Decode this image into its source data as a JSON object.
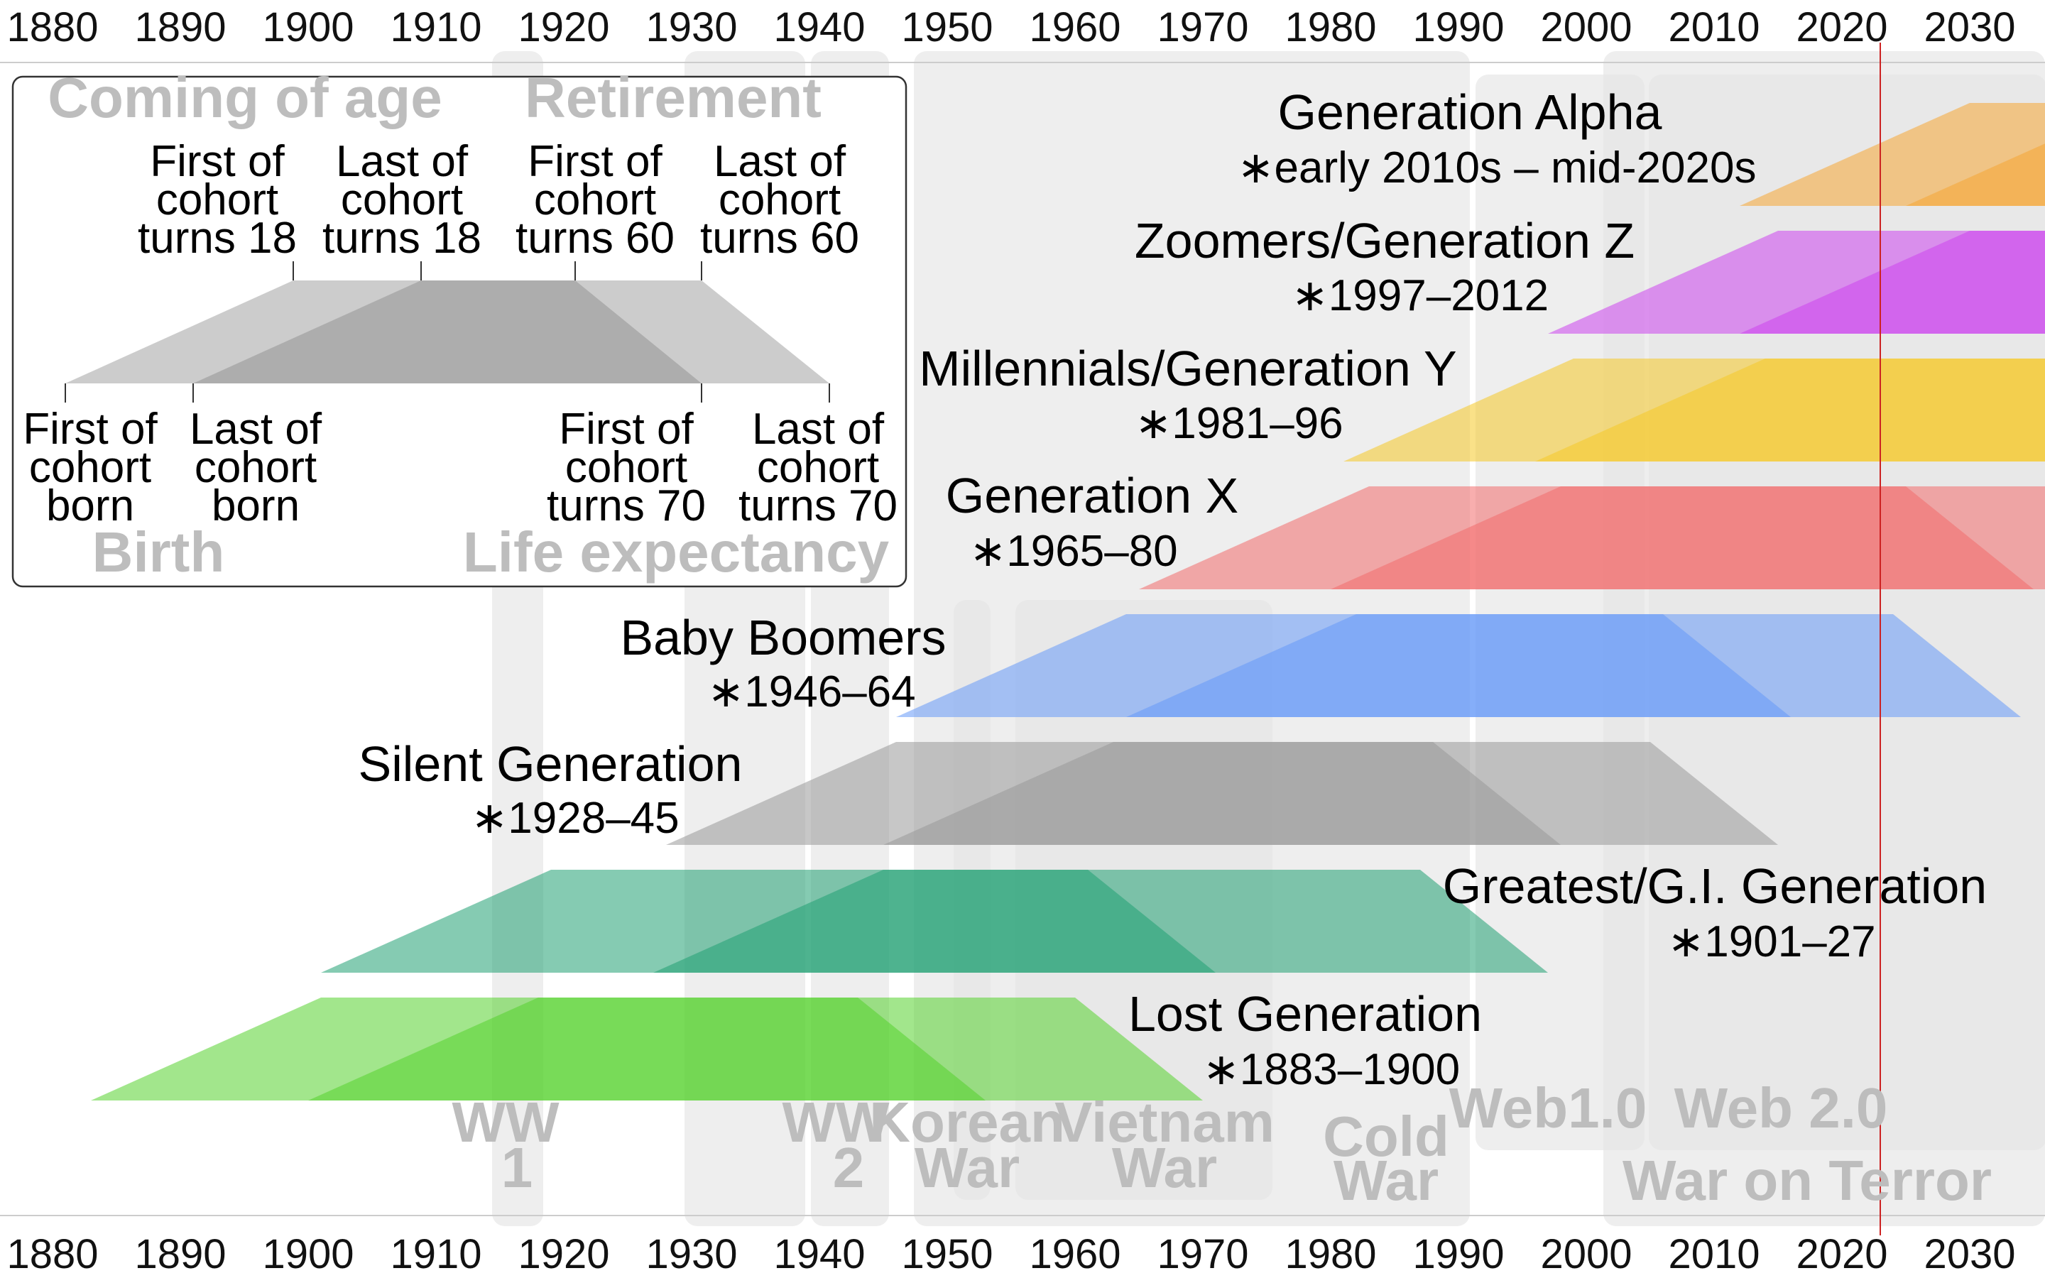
{
  "chart_data": {
    "type": "timeline",
    "x_axis": {
      "ticks": [
        "1880",
        "1890",
        "1900",
        "1910",
        "1920",
        "1930",
        "1940",
        "1950",
        "1960",
        "1970",
        "1980",
        "1990",
        "2000",
        "2010",
        "2020",
        "2030"
      ],
      "range": [
        1876,
        2036
      ]
    },
    "current_year": 2023,
    "events": [
      {
        "label": [
          "WW",
          "1"
        ],
        "start": 1914,
        "end": 1918
      },
      {
        "label": [
          "WW",
          "2"
        ],
        "start": 1939,
        "end": 1945
      },
      {
        "label": [
          "Korean",
          "War"
        ],
        "start": 1950,
        "end": 1953
      },
      {
        "label": [
          "Vietnam",
          "War"
        ],
        "start": 1955,
        "end": 1975
      },
      {
        "label": [
          "Cold",
          "War"
        ],
        "start": 1947,
        "end": 1991
      },
      {
        "label": [
          "Web1.0"
        ],
        "start": 1991,
        "end": 2004
      },
      {
        "label": [
          "Web 2.0"
        ],
        "start": 2004,
        "end": 2040
      },
      {
        "label": [
          "War on Terror"
        ],
        "start": 2001,
        "end": 2040
      },
      {
        "label": [
          ""
        ],
        "start": 1929,
        "end": 1939
      }
    ],
    "generations": [
      {
        "name": "Generation Alpha",
        "years": "∗early 2010s – mid-2020s",
        "start": 2012,
        "end": 2025,
        "color": "#f5a633"
      },
      {
        "name": "Zoomers/Generation Z",
        "years": "∗1997–2012",
        "start": 1997,
        "end": 2012,
        "color": "#cc44ee"
      },
      {
        "name": "Millennials/Generation Y",
        "years": "∗1981–96",
        "start": 1981,
        "end": 1996,
        "color": "#f5c926"
      },
      {
        "name": "Generation X",
        "years": "∗1965–80",
        "start": 1965,
        "end": 1980,
        "color": "#f26b6b"
      },
      {
        "name": "Baby Boomers",
        "years": "∗1946–64",
        "start": 1946,
        "end": 1964,
        "color": "#6699f7"
      },
      {
        "name": "Silent Generation",
        "years": "∗1928–45",
        "start": 1928,
        "end": 1945,
        "color": "#999999"
      },
      {
        "name": "Greatest/G.I. Generation",
        "years": "∗1901–27",
        "start": 1901,
        "end": 1927,
        "color": "#21a173"
      },
      {
        "name": "Lost Generation",
        "years": "∗1883–1900",
        "start": 1883,
        "end": 1900,
        "color": "#55d12e"
      }
    ],
    "milestones": {
      "coming_of_age": 18,
      "retirement": 60,
      "life_expectancy": 70
    }
  },
  "legend": {
    "coming_of_age": "Coming of age",
    "retirement": "Retirement",
    "birth": "Birth",
    "life_expectancy": "Life expectancy",
    "first_turns_18": [
      "First of",
      "cohort",
      "turns 18"
    ],
    "last_turns_18": [
      "Last of",
      "cohort",
      "turns 18"
    ],
    "first_turns_60": [
      "First of",
      "cohort",
      "turns 60"
    ],
    "last_turns_60": [
      "Last of",
      "cohort",
      "turns 60"
    ],
    "first_born": [
      "First of",
      "cohort",
      "born"
    ],
    "last_born": [
      "Last of",
      "cohort",
      "born"
    ],
    "first_turns_70": [
      "First of",
      "cohort",
      "turns 70"
    ],
    "last_turns_70": [
      "Last of",
      "cohort",
      "turns 70"
    ]
  },
  "colors": {
    "event_band": "#e6e6e6",
    "current_year_line": "#cc2222",
    "legend_light": "#cccccc",
    "legend_dark": "#aaaaaa"
  }
}
